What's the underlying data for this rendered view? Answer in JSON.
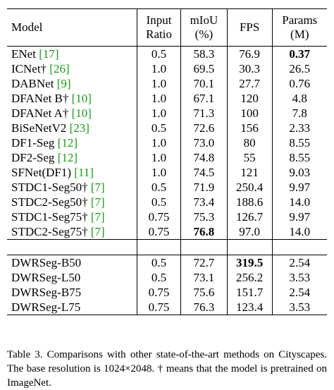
{
  "table": {
    "headers": {
      "model": "Model",
      "input_ratio_l1": "Input",
      "input_ratio_l2": "Ratio",
      "miou_l1": "mIoU",
      "miou_l2": "(%)",
      "fps": "FPS",
      "params_l1": "Params",
      "params_l2": "(M)"
    },
    "group1": [
      {
        "name": "ENet ",
        "ref": "[17]",
        "ratio": "0.5",
        "miou": "58.3",
        "fps": "76.9",
        "params": "0.37",
        "bold": "params"
      },
      {
        "name": "ICNet† ",
        "ref": "[26]",
        "ratio": "1.0",
        "miou": "69.5",
        "fps": "30.3",
        "params": "26.5",
        "bold": ""
      },
      {
        "name": "DABNet ",
        "ref": "[9]",
        "ratio": "1.0",
        "miou": "70.1",
        "fps": "27.7",
        "params": "0.76",
        "bold": ""
      },
      {
        "name": "DFANet B† ",
        "ref": "[10]",
        "ratio": "1.0",
        "miou": "67.1",
        "fps": "120",
        "params": "4.8",
        "bold": ""
      },
      {
        "name": "DFANet A† ",
        "ref": "[10]",
        "ratio": "1.0",
        "miou": "71.3",
        "fps": "100",
        "params": "7.8",
        "bold": ""
      },
      {
        "name": "BiSeNetV2 ",
        "ref": "[23]",
        "ratio": "0.5",
        "miou": "72.6",
        "fps": "156",
        "params": "2.33",
        "bold": ""
      },
      {
        "name": "DF1-Seg ",
        "ref": "[12]",
        "ratio": "1.0",
        "miou": "73.0",
        "fps": "80",
        "params": "8.55",
        "bold": ""
      },
      {
        "name": "DF2-Seg ",
        "ref": "[12]",
        "ratio": "1.0",
        "miou": "74.8",
        "fps": "55",
        "params": "8.55",
        "bold": ""
      },
      {
        "name": "SFNet(DF1) ",
        "ref": "[11]",
        "ratio": "1.0",
        "miou": "74.5",
        "fps": "121",
        "params": "9.03",
        "bold": ""
      },
      {
        "name": "STDC1-Seg50† ",
        "ref": "[7]",
        "ratio": "0.5",
        "miou": "71.9",
        "fps": "250.4",
        "params": "9.97",
        "bold": ""
      },
      {
        "name": "STDC2-Seg50† ",
        "ref": "[7]",
        "ratio": "0.5",
        "miou": "73.4",
        "fps": "188.6",
        "params": "14.0",
        "bold": ""
      },
      {
        "name": "STDC1-Seg75† ",
        "ref": "[7]",
        "ratio": "0.75",
        "miou": "75.3",
        "fps": "126.7",
        "params": "9.97",
        "bold": ""
      },
      {
        "name": "STDC2-Seg75† ",
        "ref": "[7]",
        "ratio": "0.75",
        "miou": "76.8",
        "fps": "97.0",
        "params": "14.0",
        "bold": "miou"
      }
    ],
    "group2": [
      {
        "name": "DWRSeg-B50",
        "ref": "",
        "ratio": "0.5",
        "miou": "72.7",
        "fps": "319.5",
        "params": "2.54",
        "bold": "fps"
      },
      {
        "name": "DWRSeg-L50",
        "ref": "",
        "ratio": "0.5",
        "miou": "73.1",
        "fps": "256.2",
        "params": "3.53",
        "bold": ""
      },
      {
        "name": "DWRSeg-B75",
        "ref": "",
        "ratio": "0.75",
        "miou": "75.6",
        "fps": "151.7",
        "params": "2.54",
        "bold": ""
      },
      {
        "name": "DWRSeg-L75",
        "ref": "",
        "ratio": "0.75",
        "miou": "76.3",
        "fps": "123.4",
        "params": "3.53",
        "bold": ""
      }
    ]
  },
  "caption": "Table 3.  Comparisons with other state-of-the-art methods on Cityscapes. The base resolution is 1024×2048. † means that the model is pretrained on ImageNet."
}
